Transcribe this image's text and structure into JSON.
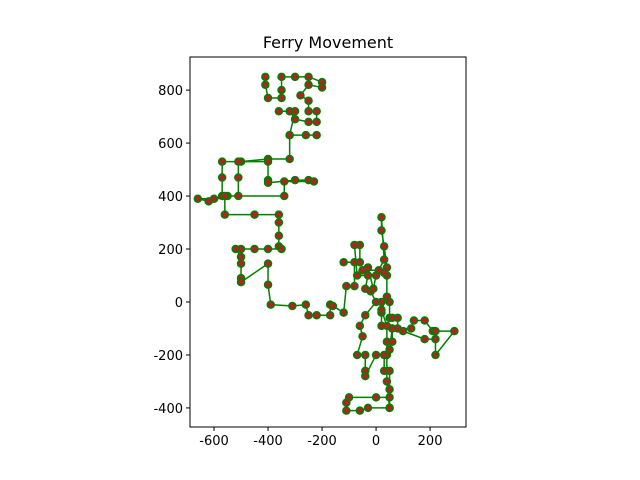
{
  "chart_data": {
    "type": "line",
    "title": "Ferry Movement",
    "x": [
      -410,
      -410,
      -400,
      -350,
      -350,
      -350,
      -300,
      -250,
      -200,
      -200,
      -250,
      -280,
      -250,
      -250,
      -220,
      -220,
      -250,
      -300,
      -320,
      -360,
      -300,
      -320,
      -260,
      -220,
      -320,
      -320,
      -400,
      -500,
      -570,
      -570,
      -570,
      -600,
      -660,
      -620,
      -550,
      -510,
      -510,
      -510,
      -400,
      -400,
      -400,
      -300,
      -250,
      -230,
      -340,
      -340,
      -560,
      -560,
      -450,
      -360,
      -360,
      -360,
      -360,
      -350,
      -400,
      -450,
      -500,
      -520,
      -500,
      -500,
      -500,
      -500,
      -400,
      -400,
      -390,
      -310,
      -260,
      -250,
      -220,
      -170,
      -170,
      -160,
      -120,
      -110,
      -80,
      -80,
      -120,
      -60,
      -60,
      -80,
      -70,
      -30,
      -40,
      -20,
      0,
      -40,
      -60,
      -50,
      -70,
      -40,
      -40,
      -40,
      0,
      40,
      40,
      60,
      60,
      20,
      20,
      20,
      50,
      50,
      60,
      80,
      80,
      130,
      140,
      180,
      210,
      220,
      290,
      220,
      220,
      180,
      100,
      60,
      50,
      30,
      30,
      50,
      50,
      50,
      50,
      0,
      -100,
      -110,
      -110,
      -60,
      -30,
      50,
      40,
      40,
      20,
      40,
      40,
      40,
      30,
      20,
      20,
      30,
      0,
      -10,
      -30,
      -50,
      10,
      30
    ],
    "values": [
      850,
      820,
      770,
      770,
      800,
      850,
      850,
      850,
      830,
      810,
      820,
      780,
      760,
      720,
      720,
      680,
      680,
      690,
      720,
      720,
      720,
      630,
      630,
      630,
      630,
      540,
      540,
      530,
      530,
      470,
      400,
      390,
      390,
      380,
      400,
      400,
      470,
      530,
      530,
      460,
      450,
      460,
      460,
      455,
      455,
      400,
      400,
      330,
      330,
      330,
      300,
      250,
      210,
      200,
      200,
      200,
      200,
      200,
      170,
      145,
      90,
      75,
      145,
      65,
      -10,
      -15,
      -10,
      -50,
      -50,
      -50,
      -10,
      -15,
      -40,
      60,
      60,
      150,
      150,
      150,
      215,
      215,
      100,
      100,
      50,
      40,
      0,
      -50,
      -90,
      -130,
      -200,
      -200,
      -260,
      -280,
      -200,
      -200,
      -150,
      -150,
      -100,
      -90,
      -40,
      0,
      0,
      -60,
      -60,
      -60,
      -100,
      -100,
      -70,
      -70,
      -110,
      -110,
      -110,
      -200,
      -140,
      -140,
      -110,
      -100,
      -180,
      -200,
      -260,
      -260,
      -330,
      -400,
      -360,
      -360,
      -360,
      -380,
      -410,
      -410,
      -400,
      -400,
      -300,
      -90,
      -30,
      20,
      100,
      130,
      210,
      270,
      320,
      160,
      100,
      50,
      130,
      120,
      120,
      110
    ],
    "color": "green",
    "marker_color": "#b22222",
    "xlim": [
      -689,
      333
    ],
    "ylim": [
      -472,
      925
    ],
    "xticks": [
      -600,
      -400,
      -200,
      0,
      200
    ],
    "yticks": [
      -400,
      -200,
      0,
      200,
      400,
      600,
      800
    ]
  }
}
